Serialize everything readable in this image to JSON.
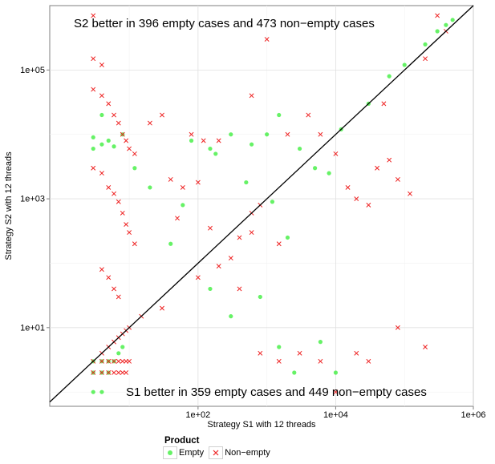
{
  "chart_data": {
    "type": "scatter",
    "title": "",
    "xlabel": "Strategy S1 with 12 threads",
    "ylabel": "Strategy S2 with 12 threads",
    "xscale": "log10",
    "yscale": "log10",
    "xlim": [
      0.7,
      1000000
    ],
    "ylim": [
      0.6,
      1000000
    ],
    "x_ticks": [
      100,
      10000,
      1000000
    ],
    "x_tick_labels": [
      "1e+02",
      "1e+04",
      "1e+06"
    ],
    "y_ticks": [
      10,
      1000,
      100000
    ],
    "y_tick_labels": [
      "1e+01",
      "1e+03",
      "1e+05"
    ],
    "grid": true,
    "legend_position": "bottom",
    "legend_title": "Product",
    "reference_line": "y = x",
    "annotations": {
      "top": "S2 better in 396 empty cases and 473 non−empty cases",
      "bottom": "S1 better in 359 empty cases and 449 non−empty cases"
    },
    "series": [
      {
        "name": "Empty",
        "marker": "circle",
        "color": "#33ee33",
        "points": [
          [
            3,
            1
          ],
          [
            4,
            1
          ],
          [
            3,
            2
          ],
          [
            4,
            2
          ],
          [
            5,
            2
          ],
          [
            3,
            3
          ],
          [
            4,
            3
          ],
          [
            5,
            3
          ],
          [
            6,
            3
          ],
          [
            7,
            4
          ],
          [
            8,
            5
          ],
          [
            3,
            6000
          ],
          [
            3,
            9000
          ],
          [
            4,
            7000
          ],
          [
            5,
            8000
          ],
          [
            6,
            6500
          ],
          [
            4,
            20000
          ],
          [
            8,
            10000
          ],
          [
            12,
            3000
          ],
          [
            20,
            1500
          ],
          [
            60,
            800
          ],
          [
            150,
            40
          ],
          [
            300,
            15
          ],
          [
            180,
            5000
          ],
          [
            800,
            30
          ],
          [
            1500,
            5
          ],
          [
            2500,
            2
          ],
          [
            10000,
            2
          ],
          [
            6000,
            6
          ],
          [
            500,
            1800
          ],
          [
            1200,
            900
          ],
          [
            2000,
            250
          ],
          [
            40,
            200
          ],
          [
            80,
            8000
          ],
          [
            300,
            10000
          ],
          [
            600,
            7000
          ],
          [
            150,
            6000
          ],
          [
            1000,
            10000
          ],
          [
            1500,
            20000
          ],
          [
            3000,
            6000
          ],
          [
            5000,
            3000
          ],
          [
            8000,
            2500
          ],
          [
            30000,
            30000
          ],
          [
            60000,
            80000
          ],
          [
            100000,
            120000
          ],
          [
            200000,
            250000
          ],
          [
            400000,
            500000
          ],
          [
            500000,
            600000
          ],
          [
            300000,
            400000
          ],
          [
            12000,
            12000
          ]
        ]
      },
      {
        "name": "Non−empty",
        "marker": "x",
        "color": "#ee2222",
        "points": [
          [
            3,
            700000
          ],
          [
            3,
            150000
          ],
          [
            4,
            120000
          ],
          [
            3,
            50000
          ],
          [
            4,
            40000
          ],
          [
            5,
            30000
          ],
          [
            6,
            20000
          ],
          [
            7,
            15000
          ],
          [
            8,
            10000
          ],
          [
            9,
            8000
          ],
          [
            10,
            6000
          ],
          [
            12,
            5000
          ],
          [
            3,
            3000
          ],
          [
            4,
            2500
          ],
          [
            5,
            1500
          ],
          [
            6,
            1200
          ],
          [
            7,
            900
          ],
          [
            8,
            600
          ],
          [
            9,
            400
          ],
          [
            10,
            300
          ],
          [
            12,
            200
          ],
          [
            4,
            80
          ],
          [
            5,
            60
          ],
          [
            6,
            40
          ],
          [
            7,
            30
          ],
          [
            3,
            2
          ],
          [
            4,
            2
          ],
          [
            5,
            2
          ],
          [
            6,
            2
          ],
          [
            7,
            2
          ],
          [
            8,
            2
          ],
          [
            9,
            2
          ],
          [
            3,
            3
          ],
          [
            4,
            3
          ],
          [
            5,
            3
          ],
          [
            6,
            3
          ],
          [
            7,
            3
          ],
          [
            8,
            3
          ],
          [
            9,
            3
          ],
          [
            10,
            3
          ],
          [
            4,
            4
          ],
          [
            5,
            5
          ],
          [
            6,
            6
          ],
          [
            7,
            7
          ],
          [
            8,
            8
          ],
          [
            9,
            9
          ],
          [
            10,
            10
          ],
          [
            15,
            15
          ],
          [
            30,
            20
          ],
          [
            80,
            10000
          ],
          [
            120,
            8000
          ],
          [
            200,
            8000
          ],
          [
            40,
            2000
          ],
          [
            60,
            1500
          ],
          [
            30,
            20000
          ],
          [
            20,
            15000
          ],
          [
            100,
            60
          ],
          [
            200,
            90
          ],
          [
            400,
            40
          ],
          [
            600,
            300
          ],
          [
            800,
            800
          ],
          [
            2000,
            10000
          ],
          [
            4000,
            20000
          ],
          [
            6000,
            10000
          ],
          [
            10000,
            5000
          ],
          [
            15000,
            1500
          ],
          [
            20000,
            1000
          ],
          [
            30000,
            800
          ],
          [
            40000,
            3000
          ],
          [
            60000,
            4000
          ],
          [
            80000,
            2000
          ],
          [
            120000,
            1200
          ],
          [
            200000,
            5
          ],
          [
            80000,
            10
          ],
          [
            1500,
            200
          ],
          [
            600,
            600
          ],
          [
            400,
            250
          ],
          [
            300,
            120
          ],
          [
            150,
            350
          ],
          [
            100,
            1800
          ],
          [
            50,
            500
          ],
          [
            800,
            4
          ],
          [
            1500,
            3
          ],
          [
            3000,
            4
          ],
          [
            6000,
            3
          ],
          [
            20000,
            4
          ],
          [
            30000,
            3
          ],
          [
            10000,
            1
          ],
          [
            400000,
            400000
          ],
          [
            200000,
            150000
          ],
          [
            300000,
            700000
          ],
          [
            50000,
            30000
          ],
          [
            600,
            40000
          ],
          [
            1000,
            300000
          ]
        ]
      }
    ]
  },
  "legend": {
    "title": "Product",
    "items": [
      {
        "label": "Empty",
        "color": "#33ee33"
      },
      {
        "label": "Non−empty",
        "color": "#ee2222"
      }
    ]
  }
}
